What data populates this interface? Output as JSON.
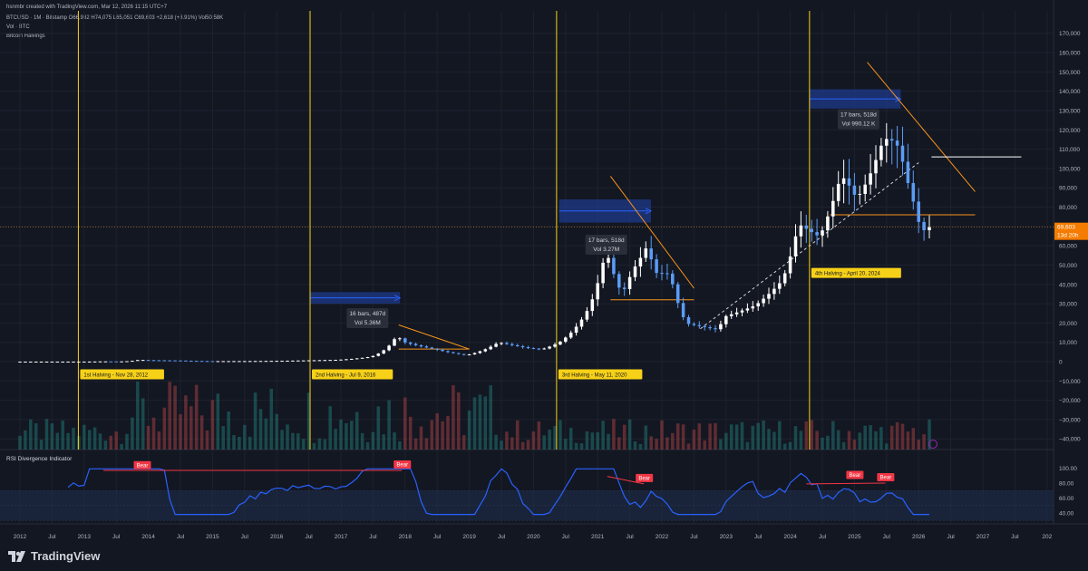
{
  "header": {
    "creator": "hsnmbr created with TradingView.com, Mar 12, 2026 11:15 UTC+7",
    "ohlc_line": "BTCUSD · 1M · Bitstamp  O66,982  H74,075  L65,051  C69,603  +2,618 (+3.91%)  Vol50.58K",
    "vol_line": "Vol · BTC",
    "halvings_line": "Bitcoin Halvings"
  },
  "price_axis": {
    "ticks": [
      170000,
      160000,
      150000,
      140000,
      130000,
      120000,
      110000,
      100000,
      90000,
      80000,
      70000,
      60000,
      50000,
      40000,
      30000,
      20000,
      10000,
      0,
      -10000,
      -20000,
      -30000,
      -40000
    ],
    "tick_labels": [
      "170,000",
      "160,000",
      "150,000",
      "140,000",
      "130,000",
      "120,000",
      "110,000",
      "100,000",
      "90,000",
      "80,000",
      "70,000",
      "60,000",
      "50,000",
      "40,000",
      "30,000",
      "20,000",
      "10,000",
      "0",
      "−10,000",
      "−20,000",
      "−30,000",
      "−40,000"
    ],
    "last_price": "69,603",
    "countdown": "13d 20h",
    "last_color": "#f57c00"
  },
  "time_axis": {
    "labels": [
      {
        "t": 2012.0,
        "text": "2012"
      },
      {
        "t": 2012.5,
        "text": "Jul"
      },
      {
        "t": 2013.0,
        "text": "2013"
      },
      {
        "t": 2013.5,
        "text": "Jul"
      },
      {
        "t": 2014.0,
        "text": "2014"
      },
      {
        "t": 2014.5,
        "text": "Jul"
      },
      {
        "t": 2015.0,
        "text": "2015"
      },
      {
        "t": 2015.5,
        "text": "Jul"
      },
      {
        "t": 2016.0,
        "text": "2016"
      },
      {
        "t": 2016.5,
        "text": "Jul"
      },
      {
        "t": 2017.0,
        "text": "2017"
      },
      {
        "t": 2017.5,
        "text": "Jul"
      },
      {
        "t": 2018.0,
        "text": "2018"
      },
      {
        "t": 2018.5,
        "text": "Jul"
      },
      {
        "t": 2019.0,
        "text": "2019"
      },
      {
        "t": 2019.5,
        "text": "Jul"
      },
      {
        "t": 2020.0,
        "text": "2020"
      },
      {
        "t": 2020.5,
        "text": "Jul"
      },
      {
        "t": 2021.0,
        "text": "2021"
      },
      {
        "t": 2021.5,
        "text": "Jul"
      },
      {
        "t": 2022.0,
        "text": "2022"
      },
      {
        "t": 2022.5,
        "text": "Jul"
      },
      {
        "t": 2023.0,
        "text": "2023"
      },
      {
        "t": 2023.5,
        "text": "Jul"
      },
      {
        "t": 2024.0,
        "text": "2024"
      },
      {
        "t": 2024.5,
        "text": "Jul"
      },
      {
        "t": 2025.0,
        "text": "2025"
      },
      {
        "t": 2025.5,
        "text": "Jul"
      },
      {
        "t": 2026.0,
        "text": "2026"
      },
      {
        "t": 2026.5,
        "text": "Jul"
      },
      {
        "t": 2027.0,
        "text": "2027"
      },
      {
        "t": 2027.5,
        "text": "Jul"
      },
      {
        "t": 2028.0,
        "text": "202"
      }
    ]
  },
  "halvings": [
    {
      "t": 2012.91,
      "label": "1st Halving - Nov 28, 2012"
    },
    {
      "t": 2016.52,
      "label": "2nd Halving - Jul 9, 2016"
    },
    {
      "t": 2020.36,
      "label": "3rd Halving - May 11, 2020"
    },
    {
      "t": 2024.3,
      "label": "4th Halving - April 20, 2024"
    }
  ],
  "annotations": [
    {
      "lines": [
        "16 bars, 487d",
        "Vol 5.36M"
      ],
      "t": 2017.4,
      "price": 23000
    },
    {
      "lines": [
        "17 bars, 518d",
        "Vol 3.27M"
      ],
      "t": 2021.12,
      "price": 61000
    },
    {
      "lines": [
        "17 bars, 518d",
        "Vol 990.12 K"
      ],
      "t": 2025.05,
      "price": 126000
    }
  ],
  "rsi": {
    "title": "RSI Divergence Indicator",
    "axis_labels": [
      "100.00",
      "80.00",
      "60.00",
      "40.00"
    ],
    "axis_values": [
      100,
      80,
      60,
      40
    ],
    "bear_label": "Bear",
    "bear_signals": [
      {
        "t": 2013.9,
        "v": 96
      },
      {
        "t": 2017.95,
        "v": 97
      },
      {
        "t": 2021.72,
        "v": 79
      },
      {
        "t": 2025.0,
        "v": 83
      },
      {
        "t": 2025.48,
        "v": 80
      }
    ]
  },
  "brand": {
    "name": "TradingView"
  },
  "colors": {
    "up": "#ffffff",
    "down": "#5b9cf6",
    "halving": "#f7d117",
    "trend": "#f7931a",
    "rsi": "#2962ff",
    "bear": "#f23645"
  },
  "chart_data": {
    "type": "candlestick",
    "title": "BTCUSD · 1M · Bitstamp",
    "interval": "monthly",
    "candles_price_points": [
      [
        2012.0,
        5
      ],
      [
        2013.0,
        13
      ],
      [
        2013.3,
        120
      ],
      [
        2013.6,
        100
      ],
      [
        2013.9,
        1000
      ],
      [
        2014.0,
        800
      ],
      [
        2014.5,
        600
      ],
      [
        2015.0,
        250
      ],
      [
        2015.5,
        280
      ],
      [
        2016.0,
        400
      ],
      [
        2016.5,
        650
      ],
      [
        2017.0,
        970
      ],
      [
        2017.5,
        2500
      ],
      [
        2017.92,
        14000
      ],
      [
        2018.0,
        10300
      ],
      [
        2018.5,
        6500
      ],
      [
        2018.92,
        3700
      ],
      [
        2019.0,
        3400
      ],
      [
        2019.42,
        8500
      ],
      [
        2019.5,
        10000
      ],
      [
        2019.92,
        7200
      ],
      [
        2020.17,
        6400
      ],
      [
        2020.42,
        9500
      ],
      [
        2020.92,
        29000
      ],
      [
        2021.17,
        58000
      ],
      [
        2021.42,
        35000
      ],
      [
        2021.58,
        47000
      ],
      [
        2021.83,
        61000
      ],
      [
        2021.92,
        46000
      ],
      [
        2022.17,
        45500
      ],
      [
        2022.42,
        19800
      ],
      [
        2022.92,
        16500
      ],
      [
        2023.0,
        23100
      ],
      [
        2023.5,
        29200
      ],
      [
        2023.92,
        42200
      ],
      [
        2024.17,
        71300
      ],
      [
        2024.5,
        64600
      ],
      [
        2024.83,
        96400
      ],
      [
        2024.92,
        93400
      ],
      [
        2025.08,
        84300
      ],
      [
        2025.25,
        94200
      ],
      [
        2025.5,
        115700
      ],
      [
        2025.67,
        114000
      ],
      [
        2025.75,
        109500
      ],
      [
        2025.92,
        87000
      ],
      [
        2026.0,
        78600
      ],
      [
        2026.08,
        66982
      ],
      [
        2026.19,
        69603
      ]
    ],
    "last_candle": {
      "open": 66982,
      "high": 74075,
      "low": 65051,
      "close": 69603,
      "change": 2618,
      "change_pct": 3.91,
      "volume": "50.58K"
    },
    "ylim": [
      -45000,
      175000
    ]
  }
}
